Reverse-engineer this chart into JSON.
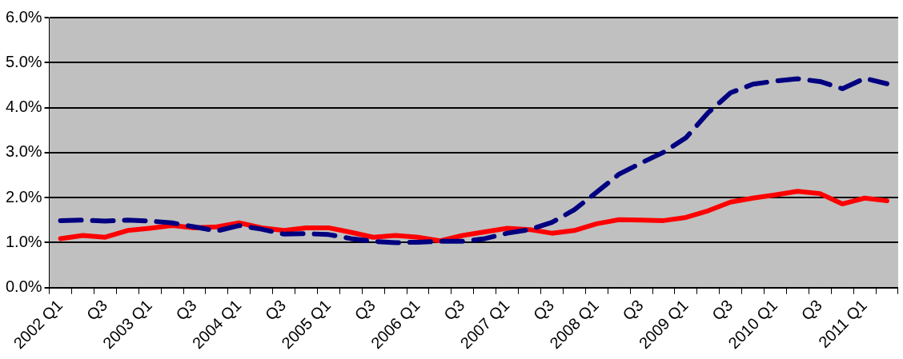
{
  "chart_data": {
    "type": "line",
    "categories": [
      "2002 Q1",
      null,
      "Q3",
      null,
      "2003 Q1",
      null,
      "Q3",
      null,
      "2004 Q1",
      null,
      "Q3",
      null,
      "2005 Q1",
      null,
      "Q3",
      null,
      "2006 Q1",
      null,
      "Q3",
      null,
      "2007 Q1",
      null,
      "Q3",
      null,
      "2008 Q1",
      null,
      "Q3",
      null,
      "2009 Q1",
      null,
      "Q3",
      null,
      "2010 Q1",
      null,
      "Q3",
      null,
      "2011 Q1",
      null
    ],
    "series": [
      {
        "color": "#000080",
        "line_style": "dashed",
        "values": [
          1.49,
          1.5,
          1.48,
          1.5,
          1.48,
          1.44,
          1.35,
          1.26,
          1.38,
          1.3,
          1.19,
          1.2,
          1.18,
          1.09,
          1.03,
          1.0,
          1.01,
          1.03,
          1.03,
          1.09,
          1.21,
          1.29,
          1.45,
          1.73,
          2.12,
          2.52,
          2.77,
          3.01,
          3.33,
          3.89,
          4.33,
          4.52,
          4.59,
          4.64,
          4.58,
          4.42,
          4.65,
          4.53
        ]
      },
      {
        "color": "#ff0000",
        "line_style": "solid",
        "values": [
          1.09,
          1.16,
          1.12,
          1.27,
          1.32,
          1.38,
          1.33,
          1.35,
          1.44,
          1.33,
          1.27,
          1.33,
          1.33,
          1.23,
          1.12,
          1.16,
          1.12,
          1.04,
          1.16,
          1.24,
          1.32,
          1.29,
          1.21,
          1.27,
          1.42,
          1.51,
          1.5,
          1.49,
          1.56,
          1.71,
          1.9,
          1.99,
          2.06,
          2.14,
          2.09,
          1.86,
          1.99,
          1.93
        ]
      }
    ],
    "ylim": [
      0,
      6
    ],
    "yticks": [
      {
        "value": 0,
        "label": "0.0%"
      },
      {
        "value": 1,
        "label": "1.0%"
      },
      {
        "value": 2,
        "label": "2.0%"
      },
      {
        "value": 3,
        "label": "3.0%"
      },
      {
        "value": 4,
        "label": "4.0%"
      },
      {
        "value": 5,
        "label": "5.0%"
      },
      {
        "value": 6,
        "label": "6.0%"
      }
    ],
    "grid": "y",
    "marker": "none",
    "legend": false
  }
}
